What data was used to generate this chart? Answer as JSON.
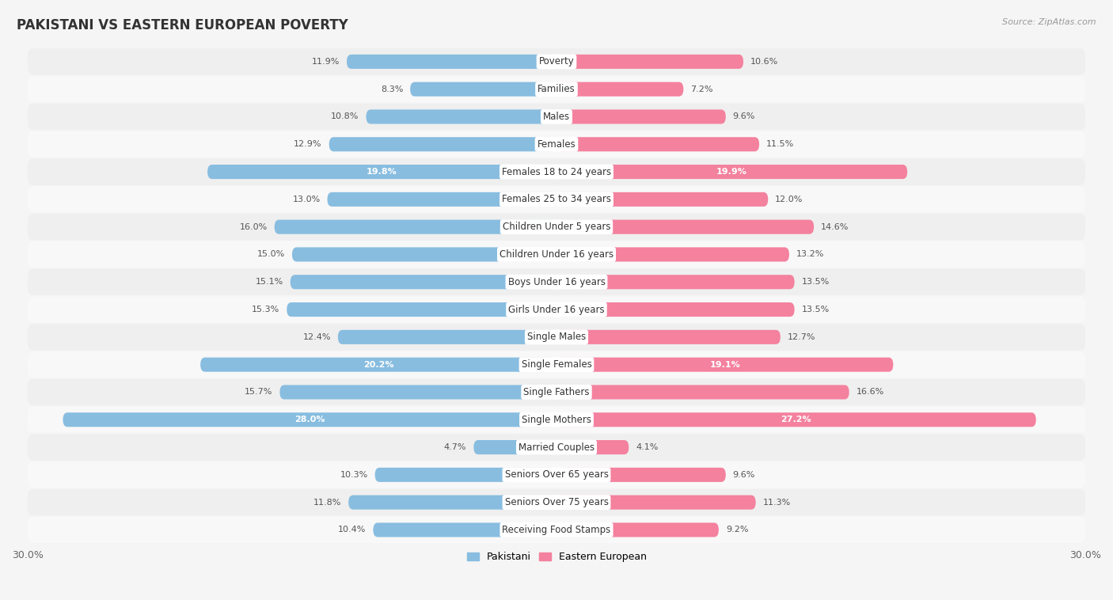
{
  "title": "PAKISTANI VS EASTERN EUROPEAN POVERTY",
  "source": "Source: ZipAtlas.com",
  "categories": [
    "Poverty",
    "Families",
    "Males",
    "Females",
    "Females 18 to 24 years",
    "Females 25 to 34 years",
    "Children Under 5 years",
    "Children Under 16 years",
    "Boys Under 16 years",
    "Girls Under 16 years",
    "Single Males",
    "Single Females",
    "Single Fathers",
    "Single Mothers",
    "Married Couples",
    "Seniors Over 65 years",
    "Seniors Over 75 years",
    "Receiving Food Stamps"
  ],
  "pakistani": [
    11.9,
    8.3,
    10.8,
    12.9,
    19.8,
    13.0,
    16.0,
    15.0,
    15.1,
    15.3,
    12.4,
    20.2,
    15.7,
    28.0,
    4.7,
    10.3,
    11.8,
    10.4
  ],
  "eastern_european": [
    10.6,
    7.2,
    9.6,
    11.5,
    19.9,
    12.0,
    14.6,
    13.2,
    13.5,
    13.5,
    12.7,
    19.1,
    16.6,
    27.2,
    4.1,
    9.6,
    11.3,
    9.2
  ],
  "pakistani_color": "#88bde0",
  "eastern_european_color": "#f4819e",
  "highlight_rows": [
    4,
    11,
    13
  ],
  "bg_even": "#efefef",
  "bg_odd": "#f8f8f8",
  "axis_limit": 30.0,
  "bar_height": 0.52,
  "font_size_cat": 8.5,
  "font_size_val": 8.0,
  "font_size_title": 12,
  "font_size_source": 8
}
